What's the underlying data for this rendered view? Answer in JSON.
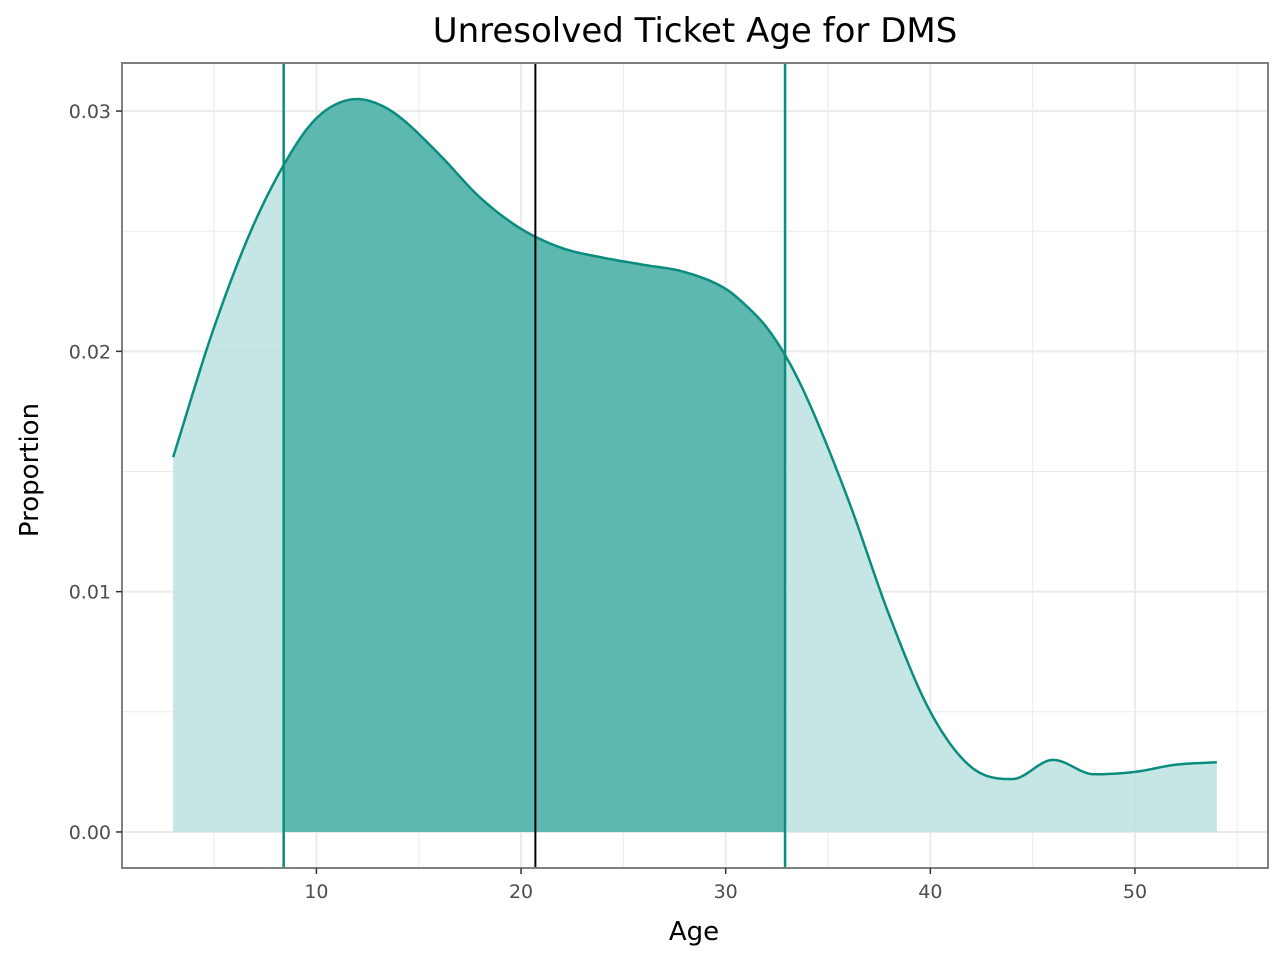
{
  "chart_data": {
    "type": "area",
    "title": "Unresolved Ticket Age for DMS",
    "xlabel": "Age",
    "ylabel": "Proportion",
    "xlim": [
      0.5,
      56.5
    ],
    "ylim": [
      -0.0015,
      0.032
    ],
    "x_ticks": [
      10,
      20,
      30,
      40,
      50
    ],
    "x_tick_labels": [
      "10",
      "20",
      "30",
      "40",
      "50"
    ],
    "y_ticks": [
      0,
      0.01,
      0.02,
      0.03
    ],
    "y_tick_labels": [
      "0.00",
      "0.01",
      "0.02",
      "0.03"
    ],
    "grid": true,
    "legend": "none",
    "series": [
      {
        "kind": "density",
        "x": [
          3,
          5,
          7,
          9,
          10,
          11,
          12,
          13,
          14,
          16,
          18,
          20,
          22,
          24,
          26,
          28,
          30,
          31,
          32,
          33,
          34,
          36,
          38,
          40,
          42,
          44,
          46,
          48,
          50,
          52,
          54
        ],
        "y": [
          0.0156,
          0.021,
          0.0254,
          0.0286,
          0.0297,
          0.0303,
          0.0305,
          0.0303,
          0.0298,
          0.0282,
          0.0264,
          0.0251,
          0.0243,
          0.0239,
          0.0236,
          0.0233,
          0.0226,
          0.0219,
          0.021,
          0.0197,
          0.018,
          0.0138,
          0.009,
          0.005,
          0.0027,
          0.0022,
          0.003,
          0.0024,
          0.0025,
          0.0028,
          0.0029
        ]
      }
    ],
    "interval": {
      "lower": 8.4,
      "upper": 32.9
    },
    "median": 20.7,
    "colors": {
      "line": "#0a8c7e",
      "fill_outer": "#bbe2df",
      "fill_inner": "#57b5ad",
      "median": "#000000",
      "grid": "#ebebeb",
      "panel_border": "#7f7f7f"
    }
  }
}
